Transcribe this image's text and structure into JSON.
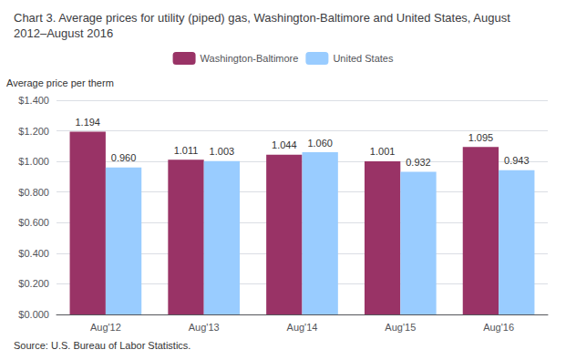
{
  "chart_data": {
    "type": "bar",
    "title": "Chart 3. Average prices for utility (piped) gas, Washington-Baltimore and United States, August 2012–August 2016",
    "ylabel": "Average price per therm",
    "annotations": [
      "Source: U.S. Bureau of Labor Statistics."
    ],
    "categories": [
      "Aug'12",
      "Aug'13",
      "Aug'14",
      "Aug'15",
      "Aug'16"
    ],
    "series": [
      {
        "name": "Washington-Baltimore",
        "color": "#993366",
        "values": [
          1.194,
          1.011,
          1.044,
          1.001,
          1.095
        ],
        "value_labels": [
          "1.194",
          "1.011",
          "1.044",
          "1.001",
          "1.095"
        ]
      },
      {
        "name": "United States",
        "color": "#99CCFF",
        "values": [
          0.96,
          1.003,
          1.06,
          0.932,
          0.943
        ],
        "value_labels": [
          "0.960",
          "1.003",
          "1.060",
          "0.932",
          "0.943"
        ]
      }
    ],
    "ylim": [
      0.0,
      1.4
    ],
    "yticks": [
      {
        "value": 0.0,
        "label": "$0.000"
      },
      {
        "value": 0.2,
        "label": "$0.200"
      },
      {
        "value": 0.4,
        "label": "$0.400"
      },
      {
        "value": 0.6,
        "label": "$0.600"
      },
      {
        "value": 0.8,
        "label": "$0.800"
      },
      {
        "value": 1.0,
        "label": "$1.000"
      },
      {
        "value": 1.2,
        "label": "$1.200"
      },
      {
        "value": 1.4,
        "label": "$1.400"
      }
    ],
    "grid": true,
    "legend": "top",
    "data_labels": true
  }
}
